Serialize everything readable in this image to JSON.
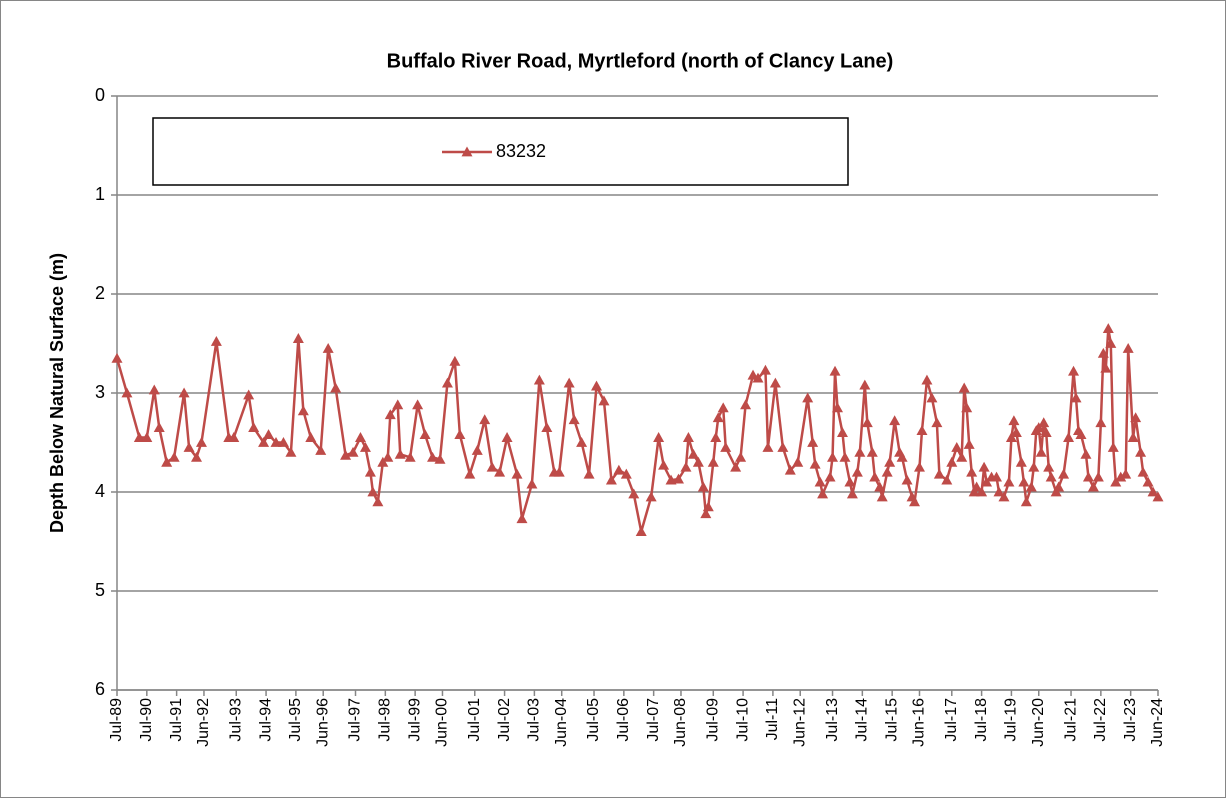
{
  "chart_data": {
    "type": "line",
    "title": "Buffalo River Road, Myrtleford (north of Clancy Lane)",
    "y_label": "Depth Below Natural Surface (m)",
    "ylim": [
      0,
      6
    ],
    "y_inverted": true,
    "yticks": [
      0,
      1,
      2,
      3,
      4,
      5,
      6
    ],
    "grid": true,
    "legend": "top",
    "xlim": [
      "1989-07",
      "2024-06"
    ],
    "xticks": [
      {
        "value": "1989-07",
        "label": "Jul-89"
      },
      {
        "value": "1990-07",
        "label": "Jul-90"
      },
      {
        "value": "1991-07",
        "label": "Jul-91"
      },
      {
        "value": "1992-06",
        "label": "Jun-92"
      },
      {
        "value": "1993-07",
        "label": "Jul-93"
      },
      {
        "value": "1994-07",
        "label": "Jul-94"
      },
      {
        "value": "1995-07",
        "label": "Jul-95"
      },
      {
        "value": "1996-06",
        "label": "Jun-96"
      },
      {
        "value": "1997-07",
        "label": "Jul-97"
      },
      {
        "value": "1998-07",
        "label": "Jul-98"
      },
      {
        "value": "1999-07",
        "label": "Jul-99"
      },
      {
        "value": "2000-06",
        "label": "Jun-00"
      },
      {
        "value": "2001-07",
        "label": "Jul-01"
      },
      {
        "value": "2002-07",
        "label": "Jul-02"
      },
      {
        "value": "2003-07",
        "label": "Jul-03"
      },
      {
        "value": "2004-06",
        "label": "Jun-04"
      },
      {
        "value": "2005-07",
        "label": "Jul-05"
      },
      {
        "value": "2006-07",
        "label": "Jul-06"
      },
      {
        "value": "2007-07",
        "label": "Jul-07"
      },
      {
        "value": "2008-06",
        "label": "Jun-08"
      },
      {
        "value": "2009-07",
        "label": "Jul-09"
      },
      {
        "value": "2010-07",
        "label": "Jul-10"
      },
      {
        "value": "2011-07",
        "label": "Jul-11"
      },
      {
        "value": "2012-06",
        "label": "Jun-12"
      },
      {
        "value": "2013-07",
        "label": "Jul-13"
      },
      {
        "value": "2014-07",
        "label": "Jul-14"
      },
      {
        "value": "2015-07",
        "label": "Jul-15"
      },
      {
        "value": "2016-06",
        "label": "Jun-16"
      },
      {
        "value": "2017-07",
        "label": "Jul-17"
      },
      {
        "value": "2018-07",
        "label": "Jul-18"
      },
      {
        "value": "2019-07",
        "label": "Jul-19"
      },
      {
        "value": "2020-06",
        "label": "Jun-20"
      },
      {
        "value": "2021-07",
        "label": "Jul-21"
      },
      {
        "value": "2022-07",
        "label": "Jul-22"
      },
      {
        "value": "2023-07",
        "label": "Jul-23"
      },
      {
        "value": "2024-06",
        "label": "Jun-24"
      }
    ],
    "x": [
      "1989-07",
      "1989-11",
      "1990-04",
      "1990-07",
      "1990-10",
      "1990-12",
      "1991-03",
      "1991-06",
      "1991-10",
      "1991-12",
      "1992-03",
      "1992-05",
      "1992-11",
      "1993-04",
      "1993-06",
      "1993-12",
      "1994-02",
      "1994-06",
      "1994-08",
      "1994-11",
      "1995-02",
      "1995-05",
      "1995-08",
      "1995-10",
      "1996-01",
      "1996-05",
      "1996-08",
      "1996-11",
      "1997-03",
      "1997-06",
      "1997-09",
      "1997-11",
      "1998-01",
      "1998-02",
      "1998-04",
      "1998-06",
      "1998-08",
      "1998-09",
      "1998-12",
      "1999-01",
      "1999-05",
      "1999-08",
      "1999-11",
      "2000-02",
      "2000-05",
      "2000-08",
      "2000-11",
      "2001-01",
      "2001-05",
      "2001-08",
      "2001-11",
      "2002-02",
      "2002-05",
      "2002-08",
      "2002-12",
      "2003-02",
      "2003-06",
      "2003-09",
      "2003-12",
      "2004-03",
      "2004-05",
      "2004-09",
      "2004-11",
      "2005-02",
      "2005-05",
      "2005-08",
      "2005-11",
      "2006-02",
      "2006-05",
      "2006-08",
      "2006-11",
      "2007-02",
      "2007-06",
      "2007-09",
      "2007-11",
      "2008-02",
      "2008-05",
      "2008-08",
      "2008-09",
      "2008-11",
      "2009-01",
      "2009-03",
      "2009-04",
      "2009-05",
      "2009-07",
      "2009-08",
      "2009-09",
      "2009-11",
      "2009-12",
      "2010-04",
      "2010-06",
      "2010-08",
      "2010-11",
      "2011-01",
      "2011-04",
      "2011-05",
      "2011-08",
      "2011-11",
      "2012-02",
      "2012-05",
      "2012-09",
      "2012-11",
      "2012-12",
      "2013-02",
      "2013-03",
      "2013-06",
      "2013-07",
      "2013-08",
      "2013-09",
      "2013-11",
      "2013-12",
      "2014-02",
      "2014-03",
      "2014-05",
      "2014-06",
      "2014-08",
      "2014-09",
      "2014-11",
      "2014-12",
      "2015-02",
      "2015-03",
      "2015-05",
      "2015-06",
      "2015-08",
      "2015-10",
      "2015-11",
      "2016-01",
      "2016-03",
      "2016-04",
      "2016-06",
      "2016-07",
      "2016-09",
      "2016-11",
      "2017-01",
      "2017-02",
      "2017-05",
      "2017-07",
      "2017-09",
      "2017-11",
      "2017-12",
      "2018-01",
      "2018-02",
      "2018-03",
      "2018-04",
      "2018-05",
      "2018-07",
      "2018-08",
      "2018-09",
      "2018-11",
      "2019-01",
      "2019-02",
      "2019-04",
      "2019-06",
      "2019-07",
      "2019-08",
      "2019-09",
      "2019-11",
      "2019-12",
      "2020-01",
      "2020-03",
      "2020-04",
      "2020-05",
      "2020-06",
      "2020-07",
      "2020-08",
      "2020-09",
      "2020-10",
      "2020-11",
      "2021-01",
      "2021-02",
      "2021-04",
      "2021-06",
      "2021-08",
      "2021-09",
      "2021-10",
      "2021-11",
      "2022-01",
      "2022-02",
      "2022-04",
      "2022-06",
      "2022-07",
      "2022-08",
      "2022-09",
      "2022-10",
      "2022-11",
      "2022-12",
      "2023-01",
      "2023-03",
      "2023-05",
      "2023-06",
      "2023-08",
      "2023-09",
      "2023-11",
      "2023-12",
      "2024-02",
      "2024-04",
      "2024-06"
    ],
    "series": [
      {
        "name": "83232",
        "color": "#be4b48",
        "values": [
          2.65,
          3.0,
          3.45,
          3.45,
          2.97,
          3.35,
          3.7,
          3.65,
          3.0,
          3.55,
          3.65,
          3.5,
          2.48,
          3.45,
          3.45,
          3.02,
          3.35,
          3.5,
          3.42,
          3.5,
          3.5,
          3.6,
          2.45,
          3.18,
          3.45,
          3.58,
          2.55,
          2.95,
          3.63,
          3.6,
          3.45,
          3.55,
          3.8,
          4.0,
          4.1,
          3.7,
          3.65,
          3.22,
          3.12,
          3.62,
          3.65,
          3.12,
          3.42,
          3.65,
          3.67,
          2.9,
          2.68,
          3.42,
          3.82,
          3.58,
          3.27,
          3.75,
          3.8,
          3.45,
          3.82,
          4.27,
          3.92,
          2.87,
          3.35,
          3.8,
          3.8,
          2.9,
          3.27,
          3.5,
          3.82,
          2.93,
          3.08,
          3.88,
          3.78,
          3.82,
          4.02,
          4.4,
          4.05,
          3.45,
          3.73,
          3.88,
          3.87,
          3.75,
          3.45,
          3.62,
          3.7,
          3.95,
          4.22,
          4.15,
          3.7,
          3.45,
          3.25,
          3.15,
          3.55,
          3.75,
          3.65,
          3.12,
          2.82,
          2.85,
          2.77,
          3.55,
          2.9,
          3.55,
          3.78,
          3.7,
          3.05,
          3.5,
          3.72,
          3.9,
          4.02,
          3.85,
          3.65,
          2.78,
          3.15,
          3.4,
          3.65,
          3.9,
          4.02,
          3.8,
          3.6,
          2.92,
          3.3,
          3.6,
          3.85,
          3.95,
          4.05,
          3.8,
          3.7,
          3.28,
          3.6,
          3.65,
          3.88,
          4.05,
          4.1,
          3.75,
          3.38,
          2.87,
          3.05,
          3.3,
          3.82,
          3.88,
          3.7,
          3.55,
          3.65,
          2.95,
          3.15,
          3.52,
          3.8,
          4.0,
          3.95,
          4.0,
          3.75,
          3.9,
          3.85,
          3.85,
          4.0,
          4.05,
          3.9,
          3.45,
          3.28,
          3.4,
          3.7,
          3.9,
          4.1,
          3.95,
          3.75,
          3.38,
          3.35,
          3.6,
          3.3,
          3.4,
          3.75,
          3.85,
          4.0,
          3.95,
          3.82,
          3.45,
          2.78,
          3.05,
          3.38,
          3.42,
          3.62,
          3.85,
          3.95,
          3.85,
          3.3,
          2.6,
          2.75,
          2.35,
          2.5,
          3.55,
          3.9,
          3.85,
          3.82,
          2.55,
          3.45,
          3.25,
          3.6,
          3.8,
          3.9,
          4.0,
          4.05
        ]
      }
    ]
  }
}
